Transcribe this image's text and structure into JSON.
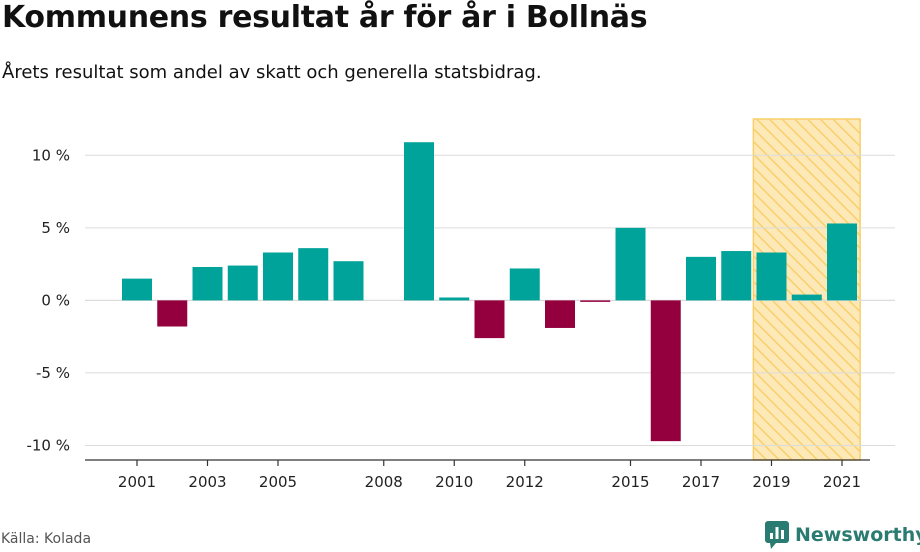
{
  "title": "Kommunens resultat år för år i Bollnäs",
  "subtitle": "Årets resultat som andel av skatt och generella statsbidrag.",
  "source": "Källa: Kolada",
  "logo_text": "Newsworthy",
  "colors": {
    "positive": "#00a39a",
    "negative": "#94003d",
    "highlight_fill": "#fde9b8",
    "highlight_stripe": "#f8cf6a",
    "grid": "#dcdcdc",
    "axis": "#333333",
    "logo": "#2a7c72"
  },
  "chart_data": {
    "type": "bar",
    "title": "Kommunens resultat år för år i Bollnäs",
    "subtitle": "Årets resultat som andel av skatt och generella statsbidrag.",
    "ylim": [
      -11,
      12.5
    ],
    "y_ticks": [
      10,
      5,
      0,
      -5,
      -10
    ],
    "y_tick_labels": [
      "10 %",
      "5 %",
      "0 %",
      "-5 %",
      "-10 %"
    ],
    "x_tick_labels": [
      "2001",
      "2003",
      "2005",
      "2008",
      "2010",
      "2012",
      "2015",
      "2017",
      "2019",
      "2021"
    ],
    "highlight_range": [
      2019,
      2021
    ],
    "grid": true,
    "series": [
      {
        "x": [
          2001,
          2002,
          2003,
          2004,
          2005,
          2006,
          2007,
          2008,
          2009,
          2010,
          2011,
          2012,
          2013,
          2014,
          2015,
          2016,
          2017,
          2018,
          2019,
          2020,
          2021
        ],
        "values": [
          1.5,
          -1.8,
          2.3,
          2.4,
          3.3,
          3.6,
          2.7,
          null,
          10.9,
          0.2,
          -2.6,
          2.2,
          -1.9,
          -0.1,
          5.0,
          -9.7,
          3.0,
          3.4,
          3.3,
          0.4,
          5.3
        ]
      }
    ]
  }
}
